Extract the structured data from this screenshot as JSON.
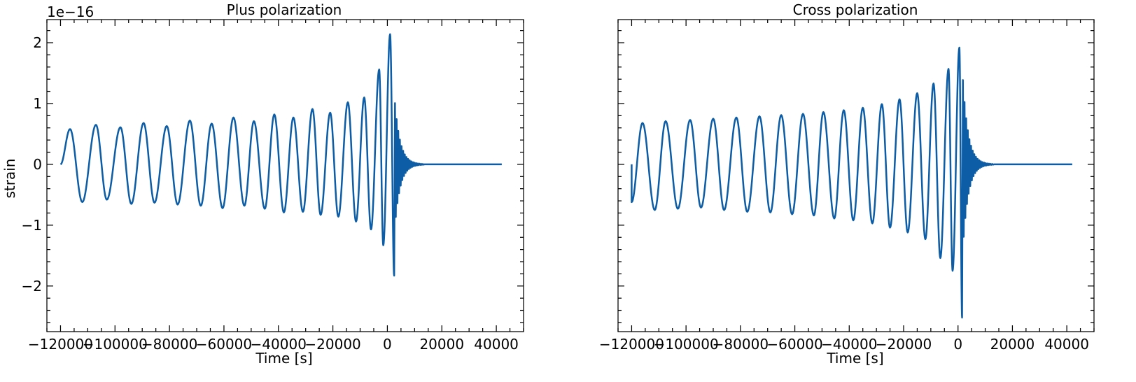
{
  "figure": {
    "offset_label": "1e−16"
  },
  "chart_data": [
    {
      "type": "line",
      "title": "Plus polarization",
      "xlabel": "Time [s]",
      "ylabel": "strain",
      "xlim": [
        -125000,
        50000
      ],
      "ylim": [
        -2.75,
        2.38
      ],
      "y_scale_factor": "1e-16",
      "xticks": [
        -120000,
        -100000,
        -80000,
        -60000,
        -40000,
        -20000,
        0,
        20000,
        40000
      ],
      "xtick_labels": [
        "−120000",
        "−100000",
        "−80000",
        "−60000",
        "−40000",
        "−20000",
        "0",
        "20000",
        "40000"
      ],
      "yticks": [
        -2,
        -1,
        0,
        1,
        2
      ],
      "ytick_labels": [
        "−2",
        "−1",
        "0",
        "1",
        "2"
      ],
      "line_color": "#0C5DA5",
      "series": [
        {
          "t_start": -120000,
          "t_merger": 0,
          "t_end": 42000,
          "peaks_t": [
            -116500,
            -107000,
            -98000,
            -89500,
            -81000,
            -72500,
            -64500,
            -56500,
            -49000,
            -41500,
            -34500,
            -27500,
            -21000,
            -14500,
            -8500,
            -3000,
            1000
          ],
          "peaks_h": [
            0.58,
            0.65,
            0.61,
            0.68,
            0.63,
            0.72,
            0.67,
            0.77,
            0.71,
            0.82,
            0.77,
            0.91,
            0.85,
            1.02,
            1.1,
            1.56,
            2.14
          ],
          "troughs_t": [
            -112000,
            -103000,
            -94000,
            -85500,
            -77000,
            -68500,
            -60500,
            -52500,
            -45000,
            -38000,
            -31000,
            -24500,
            -18000,
            -11500,
            -6000,
            -1500,
            2500
          ],
          "troughs_h": [
            -0.62,
            -0.58,
            -0.65,
            -0.63,
            -0.66,
            -0.68,
            -0.72,
            -0.68,
            -0.73,
            -0.79,
            -0.78,
            -0.83,
            -0.86,
            -0.94,
            -1.07,
            -1.33,
            -1.83
          ]
        }
      ]
    },
    {
      "type": "line",
      "title": "Cross polarization",
      "xlabel": "Time [s]",
      "ylabel": "",
      "xlim": [
        -125000,
        50000
      ],
      "ylim": [
        -2.75,
        2.38
      ],
      "y_scale_factor": "1e-16",
      "xticks": [
        -120000,
        -100000,
        -80000,
        -60000,
        -40000,
        -20000,
        0,
        20000,
        40000
      ],
      "xtick_labels": [
        "−120000",
        "−100000",
        "−80000",
        "−60000",
        "−40000",
        "−20000",
        "0",
        "20000",
        "40000"
      ],
      "yticks": [
        -2,
        -1,
        0,
        1,
        2
      ],
      "ytick_labels": [
        "",
        "",
        "",
        "",
        ""
      ],
      "line_color": "#0C5DA5",
      "series": [
        {
          "t_start": -120000,
          "t_merger": 0,
          "t_end": 42000,
          "peaks_t": [
            -116000,
            -107500,
            -98500,
            -90000,
            -81500,
            -73000,
            -65000,
            -57000,
            -49500,
            -42000,
            -35000,
            -28000,
            -21500,
            -15000,
            -9000,
            -3500,
            500
          ],
          "peaks_h": [
            0.68,
            0.71,
            0.73,
            0.75,
            0.77,
            0.79,
            0.81,
            0.83,
            0.86,
            0.89,
            0.93,
            0.99,
            1.07,
            1.17,
            1.33,
            1.57,
            1.92
          ],
          "troughs_t": [
            -120000,
            -111500,
            -103000,
            -94500,
            -86000,
            -77500,
            -69000,
            -61000,
            -53000,
            -45500,
            -38500,
            -31500,
            -25000,
            -18500,
            -12000,
            -6500,
            -2000,
            1500
          ],
          "troughs_h": [
            -0.62,
            -0.75,
            -0.73,
            -0.71,
            -0.75,
            -0.78,
            -0.79,
            -0.82,
            -0.84,
            -0.89,
            -0.92,
            -0.97,
            -1.04,
            -1.12,
            -1.23,
            -1.54,
            -1.75,
            -2.52
          ]
        }
      ]
    }
  ]
}
